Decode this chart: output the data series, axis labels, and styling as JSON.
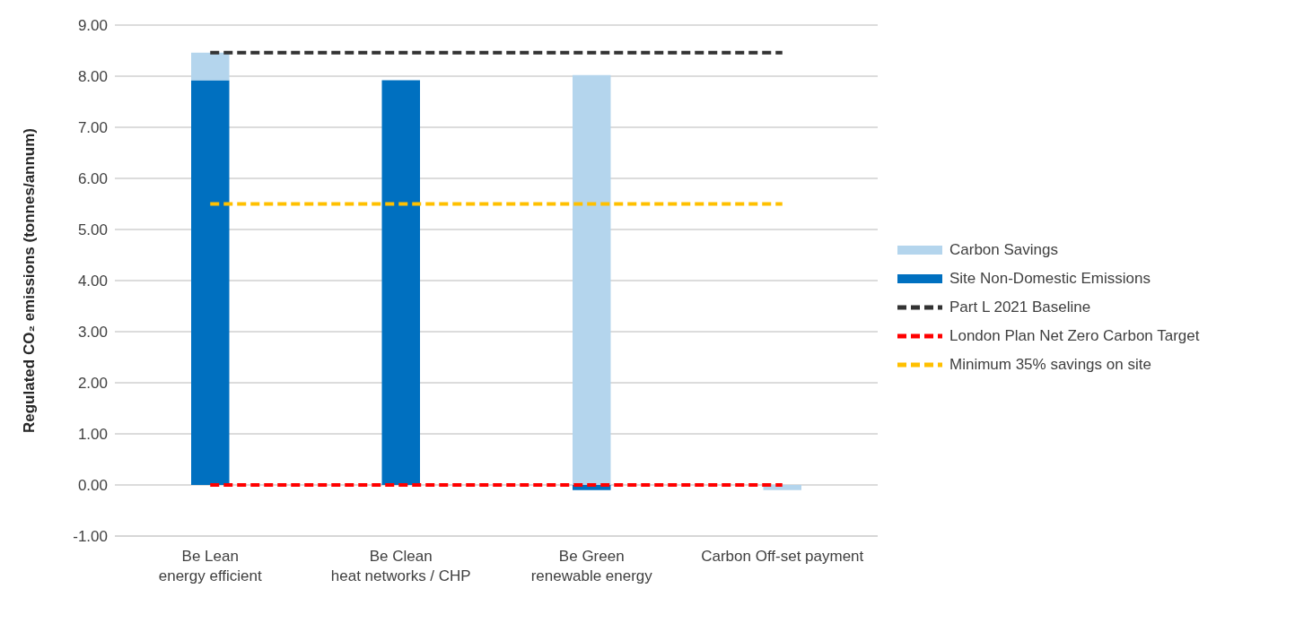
{
  "chart_data": {
    "type": "bar",
    "stacked": true,
    "ylabel": "Regulated CO₂ emissions (tonnes/annum)",
    "categories": [
      "Be Lean\nenergy efficient",
      "Be Clean\nheat networks / CHP",
      "Be Green\nrenewable energy",
      "Carbon Off-set payment"
    ],
    "series": [
      {
        "name": "Site Non-Domestic Emissions",
        "color": "#0070c0",
        "values": [
          7.92,
          7.92,
          -0.1,
          null
        ]
      },
      {
        "name": "Carbon Savings",
        "color": "#b4d5ed",
        "values": [
          0.54,
          null,
          8.02,
          -0.1
        ]
      },
      {
        "name": "Part L 2021 Baseline",
        "type": "line",
        "color": "#333333",
        "line_style": "dashed",
        "marker": "none",
        "values": [
          8.46,
          8.46,
          8.46,
          8.46
        ]
      },
      {
        "name": "London Plan Net Zero Carbon Target",
        "type": "line",
        "color": "#ff0000",
        "line_style": "dashed",
        "marker": "none",
        "values": [
          0,
          0,
          0,
          0
        ]
      },
      {
        "name": "Minimum 35% savings on site",
        "type": "line",
        "color": "#ffc000",
        "line_style": "dashed",
        "marker": "none",
        "values": [
          5.5,
          5.5,
          5.5,
          5.5
        ]
      }
    ],
    "ylim": [
      -1,
      9
    ],
    "yticks": [
      {
        "value": -1,
        "label": "-1.00"
      },
      {
        "value": 0,
        "label": "0.00"
      },
      {
        "value": 1,
        "label": "1.00"
      },
      {
        "value": 2,
        "label": "2.00"
      },
      {
        "value": 3,
        "label": "3.00"
      },
      {
        "value": 4,
        "label": "4.00"
      },
      {
        "value": 5,
        "label": "5.00"
      },
      {
        "value": 6,
        "label": "6.00"
      },
      {
        "value": 7,
        "label": "7.00"
      },
      {
        "value": 8,
        "label": "8.00"
      },
      {
        "value": 9,
        "label": "9.00"
      }
    ],
    "grid": "y",
    "legend": "right"
  }
}
